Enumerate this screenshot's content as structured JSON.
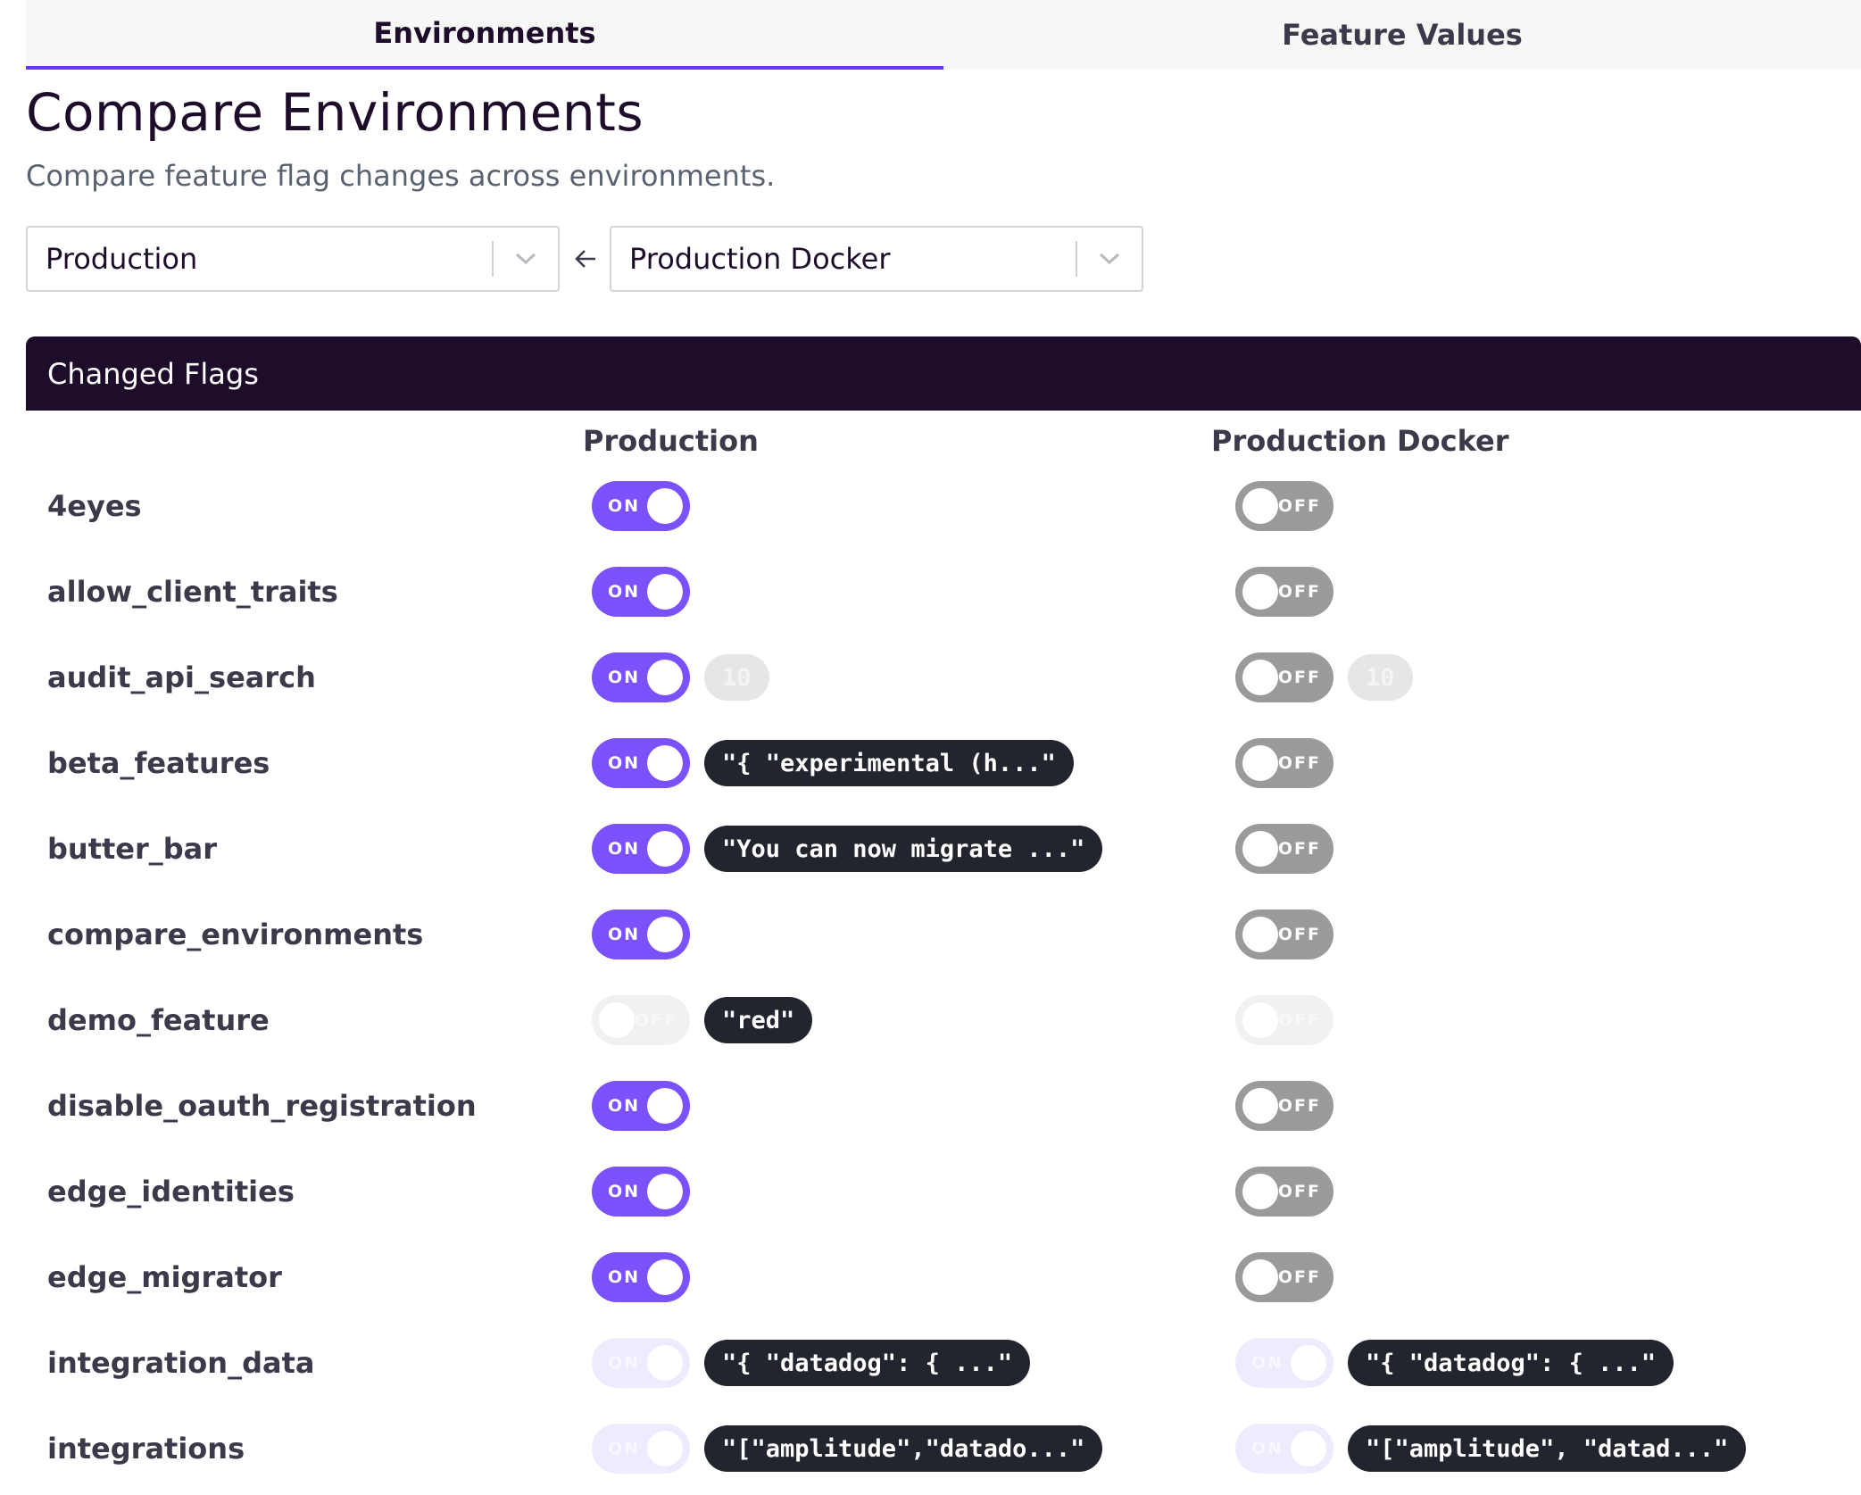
{
  "tabs": [
    {
      "label": "Environments",
      "active": true
    },
    {
      "label": "Feature Values",
      "active": false
    }
  ],
  "header": {
    "title": "Compare Environments",
    "subtitle": "Compare feature flag changes across environments."
  },
  "selectors": {
    "left_value": "Production",
    "right_value": "Production Docker",
    "arrow_icon": "arrow-left-icon",
    "chevron_icon": "chevron-down-icon"
  },
  "card": {
    "title": "Changed Flags",
    "columns": [
      "Production",
      "Production Docker"
    ]
  },
  "flags": [
    {
      "name": "4eyes",
      "left": {
        "state": "on",
        "label": "ON",
        "value": ""
      },
      "right": {
        "state": "off",
        "label": "OFF",
        "value": ""
      }
    },
    {
      "name": "allow_client_traits",
      "left": {
        "state": "on",
        "label": "ON",
        "value": ""
      },
      "right": {
        "state": "off",
        "label": "OFF",
        "value": ""
      }
    },
    {
      "name": "audit_api_search",
      "left": {
        "state": "on",
        "label": "ON",
        "value": "10",
        "value_style": "light"
      },
      "right": {
        "state": "off",
        "label": "OFF",
        "value": "10",
        "value_style": "light"
      }
    },
    {
      "name": "beta_features",
      "left": {
        "state": "on",
        "label": "ON",
        "value": "\"{ \"experimental (h...\"",
        "value_style": "dark"
      },
      "right": {
        "state": "off",
        "label": "OFF",
        "value": ""
      }
    },
    {
      "name": "butter_bar",
      "left": {
        "state": "on",
        "label": "ON",
        "value": "\"You can now migrate ...\"",
        "value_style": "dark"
      },
      "right": {
        "state": "off",
        "label": "OFF",
        "value": ""
      }
    },
    {
      "name": "compare_environments",
      "left": {
        "state": "on",
        "label": "ON",
        "value": ""
      },
      "right": {
        "state": "off",
        "label": "OFF",
        "value": ""
      }
    },
    {
      "name": "demo_feature",
      "left": {
        "state": "off-dis",
        "label": "OFF",
        "value": "\"red\"",
        "value_style": "dark"
      },
      "right": {
        "state": "off-dis",
        "label": "OFF",
        "value": ""
      }
    },
    {
      "name": "disable_oauth_registration",
      "left": {
        "state": "on",
        "label": "ON",
        "value": ""
      },
      "right": {
        "state": "off",
        "label": "OFF",
        "value": ""
      }
    },
    {
      "name": "edge_identities",
      "left": {
        "state": "on",
        "label": "ON",
        "value": ""
      },
      "right": {
        "state": "off",
        "label": "OFF",
        "value": ""
      }
    },
    {
      "name": "edge_migrator",
      "left": {
        "state": "on",
        "label": "ON",
        "value": ""
      },
      "right": {
        "state": "off",
        "label": "OFF",
        "value": ""
      }
    },
    {
      "name": "integration_data",
      "left": {
        "state": "on-dis",
        "label": "ON",
        "value": "\"{ \"datadog\": { ...\"",
        "value_style": "dark"
      },
      "right": {
        "state": "on-dis",
        "label": "ON",
        "value": "\"{ \"datadog\": { ...\"",
        "value_style": "dark"
      }
    },
    {
      "name": "integrations",
      "left": {
        "state": "on-dis",
        "label": "ON",
        "value": "\"[\"amplitude\",\"datado...\"",
        "value_style": "dark"
      },
      "right": {
        "state": "on-dis",
        "label": "ON",
        "value": "\"[\"amplitude\", \"datad...\"",
        "value_style": "dark"
      }
    }
  ]
}
